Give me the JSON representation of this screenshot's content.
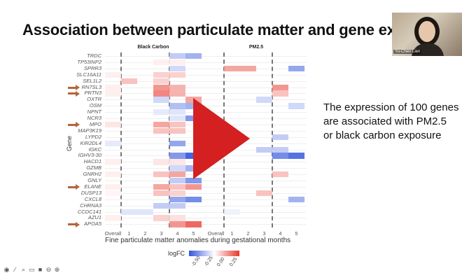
{
  "slide": {
    "title": "Association between particulate matter and gene exp",
    "side_text": [
      "The expression of 100 genes",
      "are associated with PM2.5",
      "or black carbon exposure"
    ]
  },
  "webcam": {
    "participant_name": "Yu-Chen Lien"
  },
  "controls": [
    "pointer-icon",
    "pen-icon",
    "zoom-icon",
    "captions-icon",
    "camera-icon",
    "minus-icon",
    "plus-icon"
  ],
  "play_button": {
    "icon": "play-icon",
    "color": "#d42020"
  },
  "chart_data": {
    "type": "heatmap",
    "facets": [
      "Black Carbon",
      "PM2.5"
    ],
    "columns": [
      "Overall",
      "1",
      "2",
      "3",
      "4",
      "5"
    ],
    "xlabel": "Fine particulate matter anomalies during gestational months",
    "ylabel": "Gene",
    "legend": {
      "title": "logFC",
      "ticks": [
        "-0.50",
        "-0.25",
        "0.00",
        "0.25"
      ],
      "low_color": "#3355dd",
      "high_color": "#e8382c"
    },
    "genes": [
      "TRDC",
      "TP53INP2",
      "SPRR3",
      "SLC16A11",
      "SEL1L2",
      "RN7SL3",
      "PRTN3",
      "OXTR",
      "OSM",
      "NPNT",
      "NCR3",
      "MPO",
      "MAP3K19",
      "LYPD2",
      "KIR2DL4",
      "IGKC",
      "IGHV3-30",
      "HACD1",
      "GZMB",
      "GNRH2",
      "GNLY",
      "ELANE",
      "DUSP13",
      "CXCL8",
      "CHRNA3",
      "CCDC141",
      "AZU1",
      "APOA5"
    ],
    "highlighted_genes": [
      "RN7SL3",
      "PRTN3",
      "MPO",
      "ELANE",
      "APOA5"
    ],
    "values": {
      "Black Carbon": {
        "TRDC": [
          null,
          null,
          null,
          null,
          -0.2,
          -0.3
        ],
        "TP53INP2": [
          null,
          null,
          null,
          0.05,
          0.05,
          null
        ],
        "SPRR3": [
          null,
          null,
          null,
          null,
          -0.15,
          null
        ],
        "SLC16A11": [
          0.05,
          null,
          null,
          0.15,
          0.15,
          null
        ],
        "SEL1L2": [
          null,
          0.2,
          null,
          0.15,
          null,
          null
        ],
        "RN7SL3": [
          0.05,
          null,
          null,
          0.35,
          0.25,
          null
        ],
        "PRTN3": [
          0.05,
          null,
          null,
          0.4,
          0.25,
          null
        ],
        "OXTR": [
          null,
          null,
          null,
          -0.15,
          null,
          0.3
        ],
        "OSM": [
          null,
          null,
          null,
          null,
          -0.25,
          -0.3
        ],
        "NPNT": [
          null,
          null,
          null,
          -0.08,
          -0.1,
          null
        ],
        "NCR3": [
          null,
          null,
          null,
          null,
          -0.1,
          -0.4
        ],
        "MPO": [
          0.08,
          null,
          null,
          0.3,
          0.2,
          null
        ],
        "MAP3K19": [
          null,
          null,
          null,
          0.2,
          0.2,
          null
        ],
        "LYPD2": [
          null,
          null,
          null,
          null,
          null,
          null
        ],
        "KIR2DL4": [
          -0.08,
          null,
          null,
          null,
          -0.35,
          null
        ],
        "IGKC": [
          null,
          null,
          null,
          null,
          null,
          null
        ],
        "IGHV3-30": [
          null,
          null,
          null,
          null,
          -0.4,
          -0.6
        ],
        "HACD1": [
          0.05,
          null,
          null,
          0.08,
          0.08,
          null
        ],
        "GZMB": [
          null,
          null,
          null,
          null,
          -0.15,
          -0.3
        ],
        "GNRH2": [
          0.05,
          null,
          null,
          0.2,
          0.3,
          null
        ],
        "GNLY": [
          null,
          null,
          null,
          null,
          -0.2,
          -0.4
        ],
        "ELANE": [
          0.05,
          null,
          null,
          0.3,
          0.2,
          0.35
        ],
        "DUSP13": [
          0.03,
          null,
          null,
          0.2,
          0.15,
          null
        ],
        "CXCL8": [
          null,
          null,
          null,
          null,
          -0.35,
          -0.45
        ],
        "CHRNA3": [
          null,
          null,
          null,
          -0.2,
          -0.2,
          null
        ],
        "CCDC141": [
          null,
          -0.1,
          -0.1,
          null,
          null,
          null
        ],
        "AZU1": [
          0.05,
          null,
          null,
          0.15,
          0.1,
          null
        ],
        "APOA5": [
          null,
          null,
          null,
          null,
          0.35,
          0.5
        ]
      },
      "PM2.5": {
        "SPRR3": [
          null,
          0.3,
          0.3,
          null,
          null,
          -0.35
        ],
        "RN7SL3": [
          null,
          null,
          null,
          null,
          0.35,
          null
        ],
        "PRTN3": [
          null,
          null,
          null,
          null,
          0.2,
          null
        ],
        "OXTR": [
          null,
          null,
          null,
          -0.15,
          null,
          null
        ],
        "OSM": [
          null,
          null,
          null,
          null,
          null,
          -0.15
        ],
        "LYPD2": [
          null,
          null,
          null,
          null,
          -0.2,
          null
        ],
        "IGKC": [
          null,
          null,
          null,
          -0.2,
          -0.2,
          null
        ],
        "IGHV3-30": [
          null,
          null,
          null,
          null,
          -0.45,
          -0.55
        ],
        "GNRH2": [
          null,
          null,
          null,
          null,
          0.2,
          null
        ],
        "DUSP13": [
          null,
          null,
          null,
          0.2,
          null,
          null
        ],
        "CXCL8": [
          null,
          null,
          null,
          null,
          null,
          -0.3
        ],
        "CCDC141": [
          null,
          -0.05,
          null,
          null,
          null,
          null
        ]
      }
    }
  }
}
